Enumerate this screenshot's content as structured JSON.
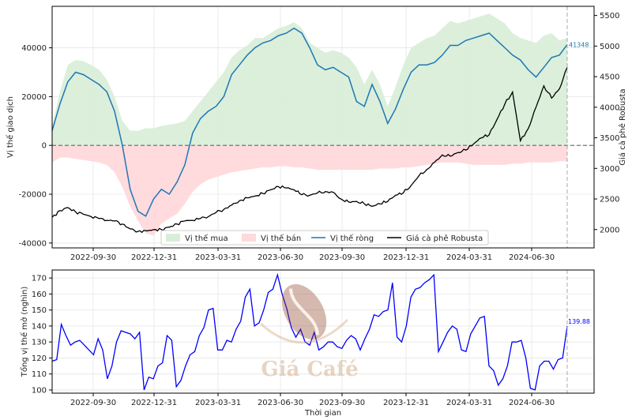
{
  "chart_data": [
    {
      "type": "area",
      "xlabel": "",
      "ylabel_left": "Vị thế giao dịch",
      "ylabel_right": "Giá cà phê Robusta",
      "x_ticks": [
        "2022-09-30",
        "2022-12-31",
        "2023-03-31",
        "2023-06-30",
        "2023-09-30",
        "2023-12-31",
        "2024-03-31",
        "2024-06-30"
      ],
      "y_left_ticks": [
        -40000,
        -20000,
        0,
        20000,
        40000
      ],
      "y_right_ticks": [
        2000,
        2500,
        3000,
        3500,
        4000,
        4500,
        5000,
        5500
      ],
      "ylim_left": [
        -42000,
        57000
      ],
      "ylim_right": [
        1700,
        5650
      ],
      "legend_position": "bottom-center",
      "end_label": "41348",
      "grid": true,
      "colors": {
        "long_fill": "#d9eed9",
        "short_fill": "#ffd9dc",
        "net": "#1f77b4",
        "price": "#000000"
      },
      "series": [
        {
          "name": "Vị thế mua",
          "kind": "area-positive",
          "values": [
            8000,
            22000,
            33000,
            35000,
            34500,
            33000,
            31000,
            27000,
            20000,
            10000,
            6000,
            6000,
            7000,
            7000,
            8000,
            8500,
            9000,
            10000,
            14000,
            18000,
            22000,
            26000,
            30000,
            36000,
            39000,
            41000,
            44000,
            44000,
            46000,
            48000,
            49000,
            50500,
            48000,
            42000,
            40000,
            38000,
            39000,
            38000,
            36000,
            32000,
            25000,
            31000,
            25000,
            16000,
            24000,
            33000,
            40000,
            42000,
            44000,
            45000,
            48000,
            51000,
            50000,
            51000,
            52000,
            53000,
            54000,
            52000,
            50000,
            46000,
            44000,
            43000,
            42000,
            45000,
            46000,
            43000,
            44000
          ]
        },
        {
          "name": "Vị thế bán",
          "kind": "area-negative",
          "values": [
            -7000,
            -5000,
            -5000,
            -5500,
            -6000,
            -6500,
            -7000,
            -8000,
            -11000,
            -17000,
            -25000,
            -31000,
            -36000,
            -37000,
            -32000,
            -30000,
            -28000,
            -24000,
            -19000,
            -16000,
            -14000,
            -13000,
            -12000,
            -11000,
            -10500,
            -10000,
            -9500,
            -9000,
            -9000,
            -8500,
            -8500,
            -9000,
            -9000,
            -9500,
            -10000,
            -10000,
            -10000,
            -10000,
            -10000,
            -10000,
            -10000,
            -10000,
            -9500,
            -9500,
            -9500,
            -9000,
            -9000,
            -8500,
            -8000,
            -7500,
            -7000,
            -7000,
            -7000,
            -7500,
            -8000,
            -8000,
            -8000,
            -8000,
            -8000,
            -7500,
            -7500,
            -7000,
            -7000,
            -7000,
            -7000,
            -6500,
            -6500
          ]
        },
        {
          "name": "Vị thế ròng",
          "kind": "line",
          "values": [
            6000,
            17000,
            26000,
            30000,
            29000,
            27000,
            25000,
            22000,
            14000,
            0,
            -18000,
            -27000,
            -29000,
            -22000,
            -18000,
            -20000,
            -15000,
            -8000,
            5000,
            11000,
            14000,
            16000,
            20000,
            29000,
            33000,
            37000,
            40000,
            42000,
            43000,
            45000,
            46000,
            48000,
            46000,
            40000,
            33000,
            31000,
            32000,
            30000,
            28000,
            18000,
            16000,
            25000,
            18000,
            9000,
            15000,
            23000,
            30000,
            33000,
            33000,
            34000,
            37000,
            41000,
            41000,
            43000,
            44000,
            45000,
            46000,
            43000,
            40000,
            37000,
            35000,
            31000,
            28000,
            32000,
            36000,
            37000,
            41348
          ]
        },
        {
          "name": "Giá cà phê Robusta",
          "kind": "line-right-axis",
          "values": [
            2200,
            2310,
            2360,
            2290,
            2250,
            2210,
            2180,
            2150,
            2140,
            2090,
            2010,
            1970,
            1980,
            2000,
            2000,
            2040,
            2090,
            2140,
            2150,
            2180,
            2210,
            2280,
            2330,
            2400,
            2470,
            2520,
            2550,
            2590,
            2650,
            2700,
            2680,
            2650,
            2570,
            2560,
            2600,
            2620,
            2610,
            2500,
            2450,
            2460,
            2420,
            2380,
            2420,
            2460,
            2560,
            2600,
            2720,
            2880,
            2980,
            3100,
            3220,
            3200,
            3260,
            3300,
            3400,
            3500,
            3550,
            3800,
            4050,
            4250,
            3450,
            3650,
            4000,
            4350,
            4150,
            4300,
            4650
          ]
        }
      ]
    },
    {
      "type": "line",
      "xlabel": "Thời gian",
      "ylabel": "Tổng vị thế mở (nghìn)",
      "x_ticks": [
        "2022-09-30",
        "2022-12-31",
        "2023-03-31",
        "2023-06-30",
        "2023-09-30",
        "2023-12-31",
        "2024-03-31",
        "2024-06-30"
      ],
      "y_ticks": [
        100,
        110,
        120,
        130,
        140,
        150,
        160,
        170
      ],
      "ylim": [
        98,
        175
      ],
      "end_label": "139.88",
      "grid": true,
      "colors": {
        "line": "#0000ff"
      },
      "series": [
        {
          "name": "Tổng vị thế mở",
          "values": [
            118,
            119,
            141,
            134,
            128,
            130,
            131,
            128,
            125,
            122,
            132,
            125,
            107,
            115,
            130,
            137,
            136,
            135,
            132,
            136,
            100,
            108,
            107,
            115,
            117,
            134,
            131,
            102,
            106,
            115,
            122,
            124,
            134,
            139,
            150,
            151,
            125,
            125,
            131,
            130,
            138,
            143,
            158,
            163,
            140,
            142,
            150,
            161,
            163,
            172,
            160,
            151,
            139,
            133,
            138,
            130,
            128,
            136,
            125,
            127,
            130,
            130,
            127,
            126,
            131,
            134,
            132,
            125,
            132,
            138,
            147,
            146,
            149,
            150,
            167,
            133,
            130,
            140,
            158,
            163,
            164,
            167,
            169,
            172,
            124,
            130,
            136,
            140,
            138,
            125,
            124,
            135,
            140,
            145,
            146,
            115,
            112,
            103,
            107,
            115,
            130,
            130,
            131,
            120,
            101,
            100,
            115,
            118,
            118,
            113,
            119,
            120,
            139.88
          ]
        }
      ]
    }
  ],
  "watermark": {
    "text": "Giá Café",
    "colors": {
      "bean": "#8b3a1a",
      "text": "#cfa27a"
    }
  }
}
